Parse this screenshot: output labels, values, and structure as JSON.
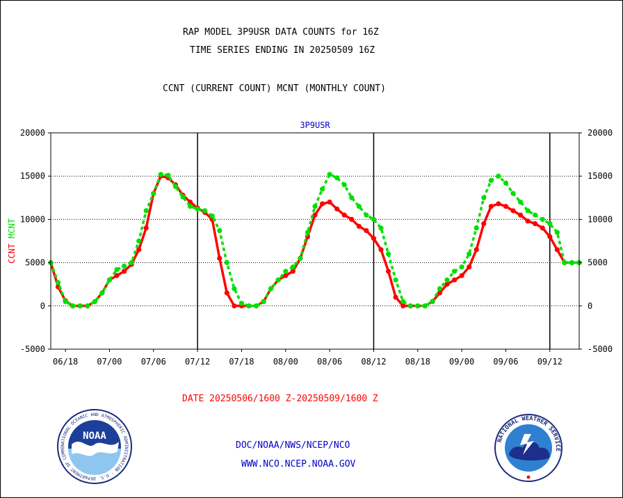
{
  "header": {
    "title_line1": "RAP MODEL 3P9USR DATA COUNTS for 16Z",
    "title_line2": "TIME SERIES ENDING IN 20250509 16Z",
    "title_line3": "CCNT (CURRENT COUNT) MCNT (MONTHLY COUNT)"
  },
  "footer": {
    "date_range": "DATE 20250506/1600 Z-20250509/1600 Z",
    "org_path": "DOC/NOAA/NWS/NCEP/NCO",
    "website": "WWW.NCO.NCEP.NOAA.GOV"
  },
  "logos": {
    "noaa_text": "NOAA",
    "noaa_ring": "NATIONAL OCEANIC AND ATMOSPHERIC ADMINISTRATION · U.S. DEPARTMENT OF COMMERCE",
    "nws_ring": "NATIONAL WEATHER SERVICE"
  },
  "colors": {
    "ccnt": "#ff0000",
    "mcnt": "#00e000",
    "plot_title": "#0000cc",
    "grid": "#000000"
  },
  "chart_data": {
    "type": "line",
    "title": "3P9USR",
    "ylabel_parts": [
      "CCNT",
      "MCNT"
    ],
    "ylim": [
      -5000,
      20000
    ],
    "yticks": [
      -5000,
      0,
      5000,
      10000,
      15000,
      20000
    ],
    "ytick_labels": [
      "-5000",
      "0",
      "5000",
      "10000",
      "15000",
      "20000"
    ],
    "x_index_range": [
      0,
      72
    ],
    "x_tick_labels": [
      "06/18",
      "07/00",
      "07/06",
      "07/12",
      "07/18",
      "08/00",
      "08/06",
      "08/12",
      "08/18",
      "09/00",
      "09/06",
      "09/12"
    ],
    "x_tick_index": [
      2,
      8,
      14,
      20,
      26,
      32,
      38,
      44,
      50,
      56,
      62,
      68
    ],
    "day_boundaries_index": [
      20,
      44,
      68
    ],
    "grid": "horizontal dotted",
    "series": [
      {
        "name": "CCNT",
        "values": [
          5000,
          2200,
          600,
          0,
          0,
          0,
          500,
          1500,
          3000,
          3500,
          4000,
          4800,
          6500,
          9000,
          13000,
          15000,
          14800,
          14000,
          12800,
          12000,
          11300,
          10800,
          10000,
          5500,
          1500,
          0,
          0,
          0,
          0,
          500,
          2000,
          3000,
          3500,
          4000,
          5500,
          8000,
          10500,
          11800,
          12000,
          11200,
          10500,
          10000,
          9200,
          8700,
          7800,
          6500,
          4000,
          1000,
          0,
          0,
          0,
          0,
          500,
          1500,
          2500,
          3000,
          3500,
          4500,
          6500,
          9500,
          11500,
          11800,
          11500,
          11000,
          10500,
          9800,
          9500,
          9000,
          8000,
          6500,
          5000,
          5000,
          5000
        ]
      },
      {
        "name": "MCNT",
        "values": [
          5000,
          2700,
          500,
          0,
          0,
          0,
          500,
          1500,
          3000,
          4200,
          4600,
          5000,
          7500,
          11000,
          13000,
          15200,
          15100,
          13800,
          12600,
          11500,
          11200,
          11000,
          10400,
          8700,
          5000,
          2000,
          300,
          0,
          0,
          500,
          2000,
          3000,
          4000,
          4500,
          5500,
          8500,
          11500,
          13500,
          15200,
          14800,
          14000,
          12500,
          11500,
          10500,
          10000,
          9000,
          6000,
          3000,
          500,
          0,
          0,
          0,
          500,
          2000,
          3000,
          4000,
          4500,
          6000,
          9000,
          12500,
          14500,
          15000,
          14200,
          13000,
          12000,
          11000,
          10500,
          10000,
          9500,
          8500,
          5000,
          5000,
          5000
        ]
      }
    ]
  }
}
